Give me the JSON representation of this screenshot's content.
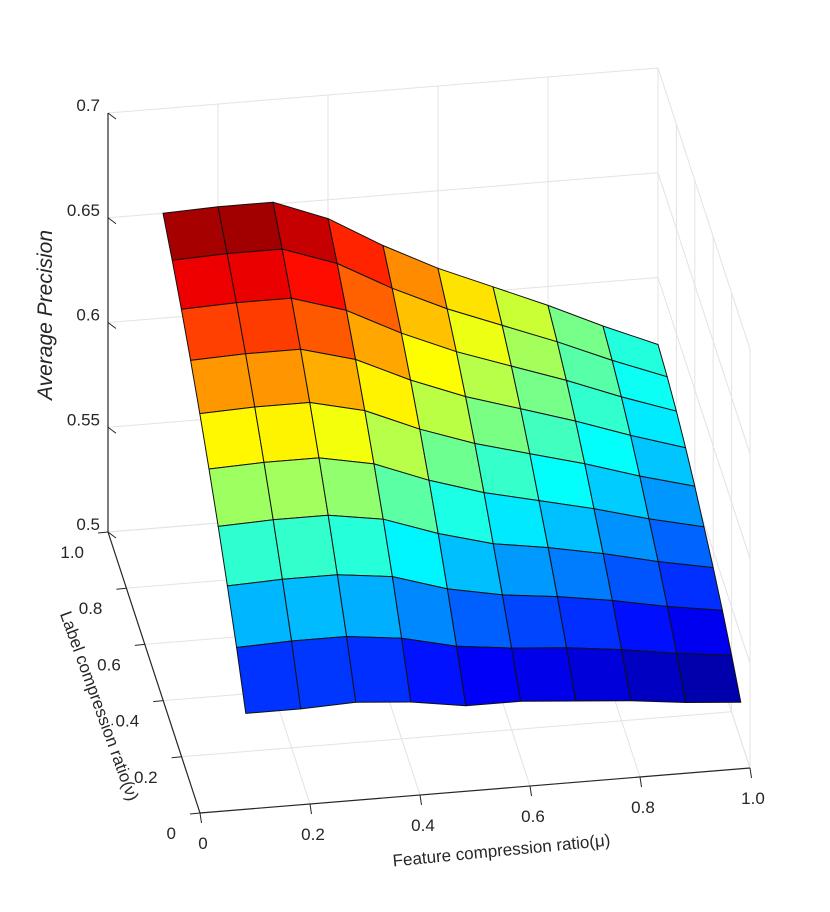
{
  "chart_data": {
    "type": "surface",
    "title": "",
    "xlabel": "Feature compression ratio(μ)",
    "ylabel": "Label compression ratio(ν)",
    "zlabel": "Average Precision",
    "x_ticks": [
      "0",
      "0.2",
      "0.4",
      "0.6",
      "0.8",
      "1.0"
    ],
    "y_ticks": [
      "0",
      "0.2",
      "0.4",
      "0.6",
      "0.8",
      "1.0"
    ],
    "z_ticks": [
      "0.5",
      "0.55",
      "0.6",
      "0.65",
      "0.7"
    ],
    "xlim": [
      0,
      1
    ],
    "ylim": [
      0,
      1
    ],
    "zlim": [
      0.5,
      0.7
    ],
    "grid": true,
    "colormap": "jet",
    "x": [
      0.1,
      0.2,
      0.3,
      0.4,
      0.5,
      0.6,
      0.7,
      0.8,
      0.9,
      1.0
    ],
    "y": [
      0.1,
      0.2,
      0.3,
      0.4,
      0.5,
      0.6,
      0.7,
      0.8,
      0.9,
      1.0
    ],
    "z": [
      [
        0.532,
        0.532,
        0.533,
        0.531,
        0.527,
        0.527,
        0.525,
        0.523,
        0.52,
        0.518
      ],
      [
        0.55,
        0.551,
        0.551,
        0.548,
        0.542,
        0.539,
        0.537,
        0.534,
        0.53,
        0.527
      ],
      [
        0.566,
        0.567,
        0.567,
        0.564,
        0.556,
        0.551,
        0.548,
        0.544,
        0.539,
        0.535
      ],
      [
        0.581,
        0.582,
        0.582,
        0.578,
        0.569,
        0.562,
        0.558,
        0.553,
        0.547,
        0.542
      ],
      [
        0.595,
        0.596,
        0.596,
        0.591,
        0.581,
        0.573,
        0.567,
        0.561,
        0.554,
        0.548
      ],
      [
        0.608,
        0.609,
        0.609,
        0.603,
        0.592,
        0.583,
        0.576,
        0.569,
        0.561,
        0.554
      ],
      [
        0.62,
        0.621,
        0.621,
        0.614,
        0.602,
        0.592,
        0.584,
        0.576,
        0.567,
        0.559
      ],
      [
        0.631,
        0.632,
        0.632,
        0.624,
        0.611,
        0.6,
        0.591,
        0.582,
        0.572,
        0.563
      ],
      [
        0.641,
        0.642,
        0.642,
        0.633,
        0.619,
        0.607,
        0.597,
        0.587,
        0.576,
        0.566
      ],
      [
        0.65,
        0.651,
        0.651,
        0.641,
        0.626,
        0.613,
        0.602,
        0.591,
        0.579,
        0.568
      ]
    ]
  }
}
